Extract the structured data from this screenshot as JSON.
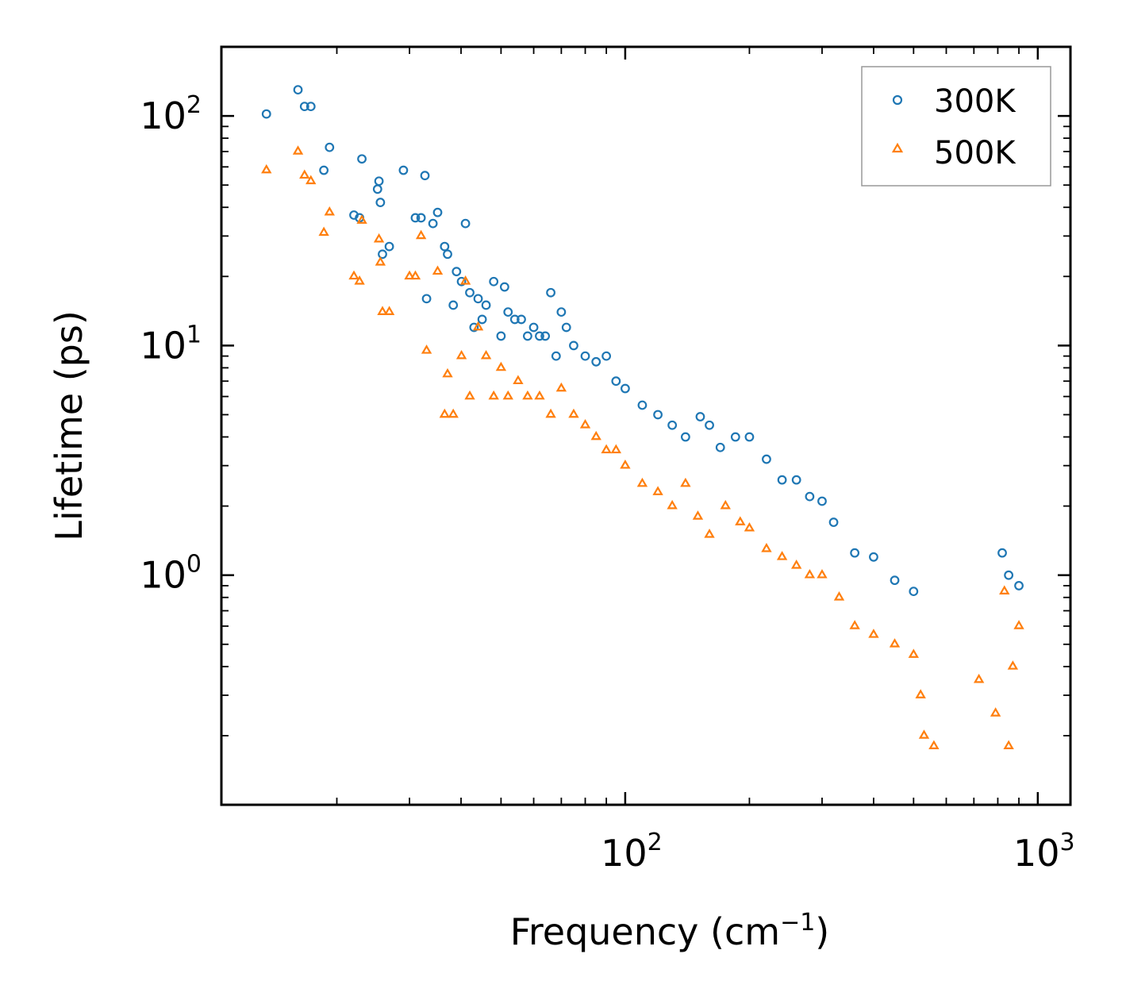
{
  "chart_data": {
    "type": "scatter",
    "title": "",
    "xlabel": "Frequency (cm",
    "xlabel_sup": "−1",
    "xlabel_end": ")",
    "ylabel": "Lifetime (ps)",
    "xscale": "log",
    "yscale": "log",
    "xlim": [
      10.5,
      1200
    ],
    "ylim": [
      0.1,
      200
    ],
    "x_ticks": [
      {
        "value": 100,
        "base": "10",
        "exp": "2"
      },
      {
        "value": 1000,
        "base": "10",
        "exp": "3"
      }
    ],
    "y_ticks": [
      {
        "value": 1,
        "base": "10",
        "exp": "0"
      },
      {
        "value": 10,
        "base": "10",
        "exp": "1"
      },
      {
        "value": 100,
        "base": "10",
        "exp": "2"
      }
    ],
    "legend": {
      "position": "top-right"
    },
    "series": [
      {
        "name": "300K",
        "marker": "circle",
        "color": "#1f77b4",
        "points": [
          [
            13.5,
            102
          ],
          [
            16.1,
            130
          ],
          [
            16.7,
            110
          ],
          [
            17.3,
            110
          ],
          [
            18.6,
            58
          ],
          [
            19.2,
            73
          ],
          [
            23,
            65
          ],
          [
            22,
            37
          ],
          [
            22.7,
            36
          ],
          [
            25.1,
            48
          ],
          [
            25.3,
            52
          ],
          [
            25.5,
            42
          ],
          [
            25.8,
            25
          ],
          [
            26.8,
            27
          ],
          [
            29,
            58
          ],
          [
            31,
            36
          ],
          [
            32,
            36
          ],
          [
            32.7,
            55
          ],
          [
            33,
            16
          ],
          [
            34.2,
            34
          ],
          [
            35.1,
            38
          ],
          [
            36.5,
            27
          ],
          [
            37.1,
            25
          ],
          [
            38.3,
            15
          ],
          [
            39,
            21
          ],
          [
            40.1,
            19
          ],
          [
            41,
            34
          ],
          [
            42,
            17
          ],
          [
            43,
            12
          ],
          [
            44,
            16
          ],
          [
            45,
            13
          ],
          [
            46,
            15
          ],
          [
            48,
            19
          ],
          [
            50,
            11
          ],
          [
            51,
            18
          ],
          [
            52,
            14
          ],
          [
            54,
            13
          ],
          [
            56,
            13
          ],
          [
            58,
            11
          ],
          [
            60,
            12
          ],
          [
            62,
            11
          ],
          [
            64,
            11
          ],
          [
            66,
            17
          ],
          [
            68,
            9
          ],
          [
            70,
            14
          ],
          [
            72,
            12
          ],
          [
            75,
            10
          ],
          [
            80,
            9
          ],
          [
            85,
            8.5
          ],
          [
            90,
            9
          ],
          [
            95,
            7
          ],
          [
            100,
            6.5
          ],
          [
            110,
            5.5
          ],
          [
            120,
            5
          ],
          [
            130,
            4.5
          ],
          [
            140,
            4
          ],
          [
            152,
            4.9
          ],
          [
            160,
            4.5
          ],
          [
            170,
            3.6
          ],
          [
            185,
            4
          ],
          [
            200,
            4
          ],
          [
            220,
            3.2
          ],
          [
            240,
            2.6
          ],
          [
            260,
            2.6
          ],
          [
            280,
            2.2
          ],
          [
            300,
            2.1
          ],
          [
            320,
            1.7
          ],
          [
            360,
            1.25
          ],
          [
            400,
            1.2
          ],
          [
            450,
            0.95
          ],
          [
            500,
            0.85
          ],
          [
            820,
            1.25
          ],
          [
            850,
            1
          ],
          [
            900,
            0.9
          ]
        ]
      },
      {
        "name": "500K",
        "marker": "triangle",
        "color": "#ff7f0e",
        "points": [
          [
            13.5,
            58
          ],
          [
            16.1,
            70
          ],
          [
            16.7,
            55
          ],
          [
            17.3,
            52
          ],
          [
            18.6,
            31
          ],
          [
            19.2,
            38
          ],
          [
            22,
            20
          ],
          [
            22.7,
            19
          ],
          [
            23,
            35
          ],
          [
            25.3,
            29
          ],
          [
            25.5,
            23
          ],
          [
            25.8,
            14
          ],
          [
            26.8,
            14
          ],
          [
            30,
            20
          ],
          [
            31,
            20
          ],
          [
            32,
            30
          ],
          [
            33,
            9.5
          ],
          [
            35.1,
            21
          ],
          [
            36.5,
            5
          ],
          [
            37.1,
            7.5
          ],
          [
            38.3,
            5
          ],
          [
            40.1,
            9
          ],
          [
            41,
            19
          ],
          [
            42,
            6
          ],
          [
            44,
            12
          ],
          [
            46,
            9
          ],
          [
            48,
            6
          ],
          [
            50,
            8
          ],
          [
            52,
            6
          ],
          [
            55,
            7
          ],
          [
            58,
            6
          ],
          [
            62,
            6
          ],
          [
            66,
            5
          ],
          [
            70,
            6.5
          ],
          [
            75,
            5
          ],
          [
            80,
            4.5
          ],
          [
            85,
            4
          ],
          [
            90,
            3.5
          ],
          [
            95,
            3.5
          ],
          [
            100,
            3
          ],
          [
            110,
            2.5
          ],
          [
            120,
            2.3
          ],
          [
            130,
            2
          ],
          [
            140,
            2.5
          ],
          [
            150,
            1.8
          ],
          [
            160,
            1.5
          ],
          [
            175,
            2
          ],
          [
            190,
            1.7
          ],
          [
            200,
            1.6
          ],
          [
            220,
            1.3
          ],
          [
            240,
            1.2
          ],
          [
            260,
            1.1
          ],
          [
            280,
            1
          ],
          [
            300,
            1
          ],
          [
            330,
            0.8
          ],
          [
            360,
            0.6
          ],
          [
            400,
            0.55
          ],
          [
            450,
            0.5
          ],
          [
            500,
            0.45
          ],
          [
            520,
            0.3
          ],
          [
            530,
            0.2
          ],
          [
            560,
            0.18
          ],
          [
            720,
            0.35
          ],
          [
            790,
            0.25
          ],
          [
            830,
            0.85
          ],
          [
            850,
            0.18
          ],
          [
            870,
            0.4
          ],
          [
            900,
            0.6
          ]
        ]
      }
    ]
  }
}
